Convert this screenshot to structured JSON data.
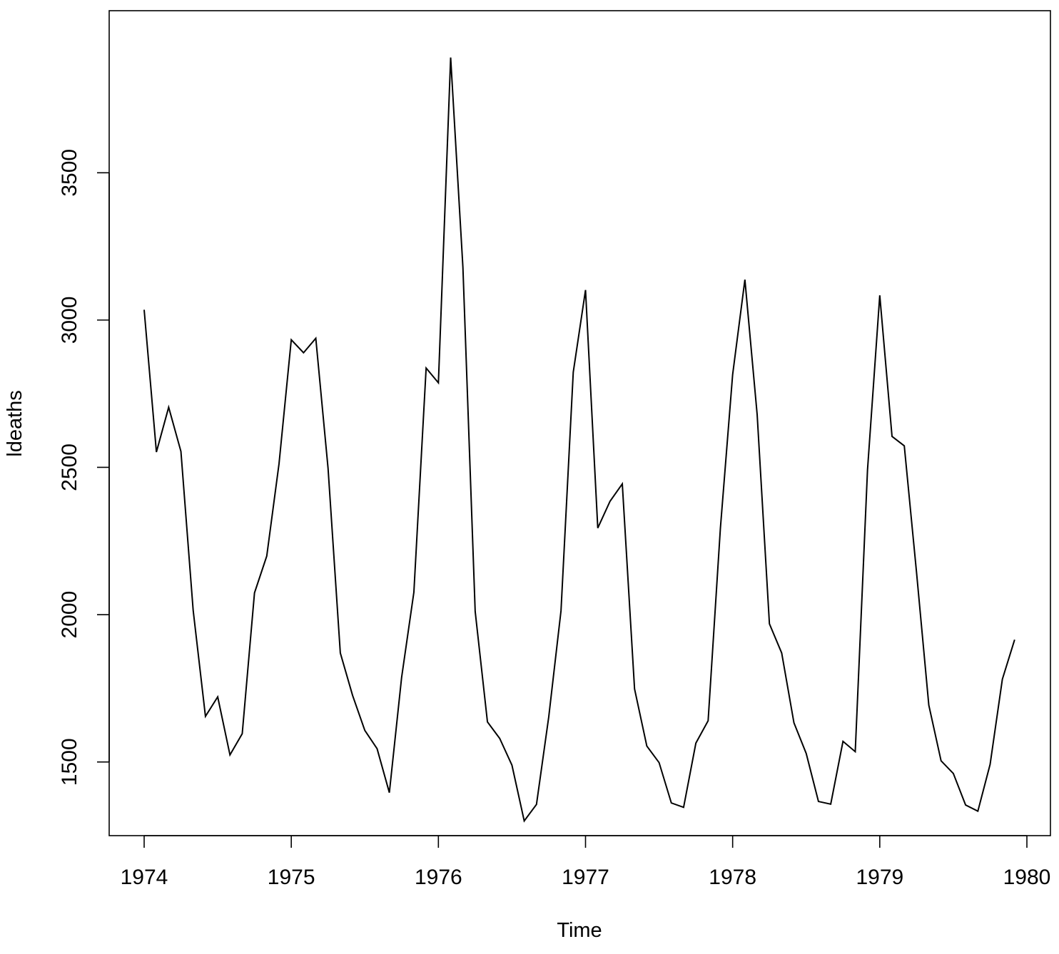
{
  "chart_data": {
    "type": "line",
    "title": "",
    "xlabel": "Time",
    "ylabel": "ldeaths",
    "xlim": [
      1974,
      1980
    ],
    "ylim": [
      1250,
      4050
    ],
    "xticks": [
      1974,
      1975,
      1976,
      1977,
      1978,
      1979,
      1980
    ],
    "xtick_labels": [
      "1974",
      "1975",
      "1976",
      "1977",
      "1978",
      "1979",
      "1980"
    ],
    "yticks": [
      1500,
      2000,
      2500,
      3000,
      3500
    ],
    "ytick_labels": [
      "1500",
      "2000",
      "2500",
      "3000",
      "3500"
    ],
    "grid": false,
    "legend": "none",
    "series": [
      {
        "start": 1974,
        "frequency": 12,
        "values": [
          3035,
          2552,
          2704,
          2554,
          2014,
          1655,
          1721,
          1524,
          1596,
          2074,
          2199,
          2512,
          2933,
          2889,
          2938,
          2497,
          1870,
          1726,
          1607,
          1545,
          1396,
          1787,
          2076,
          2837,
          2787,
          3891,
          3179,
          2011,
          1636,
          1580,
          1489,
          1300,
          1356,
          1653,
          2013,
          2823,
          3102,
          2294,
          2385,
          2444,
          1748,
          1554,
          1498,
          1361,
          1346,
          1564,
          1640,
          2293,
          2815,
          3137,
          2679,
          1969,
          1870,
          1633,
          1529,
          1366,
          1357,
          1570,
          1535,
          2491,
          3084,
          2605,
          2573,
          2143,
          1693,
          1504,
          1461,
          1354,
          1333,
          1492,
          1781,
          1915
        ]
      }
    ]
  }
}
